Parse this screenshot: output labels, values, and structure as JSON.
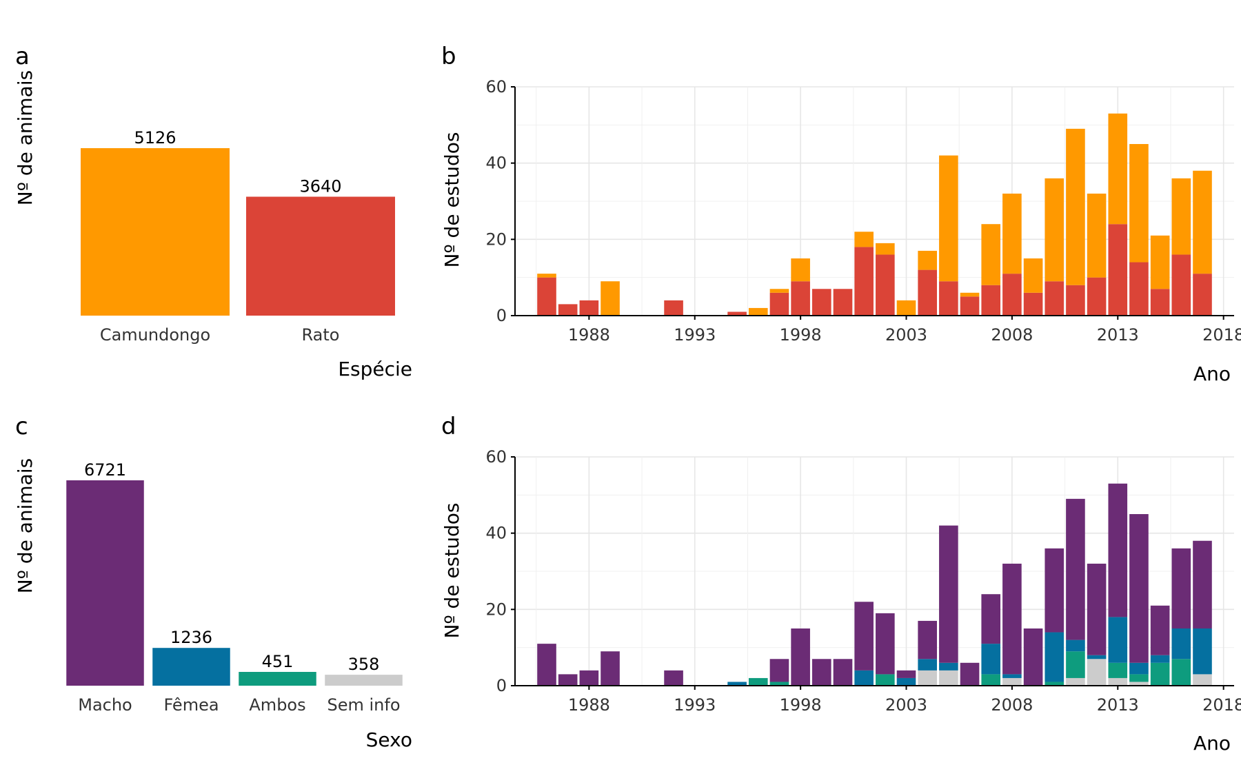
{
  "colors": {
    "camundongo": "#FF9900",
    "rato": "#DB4437",
    "macho": "#6B2C75",
    "femea": "#0570A0",
    "ambos": "#0E9C7E",
    "sem_info": "#CCCCCC"
  },
  "chart_data": [
    {
      "panel": "a",
      "type": "bar",
      "title": "",
      "xlabel": "Espécie",
      "ylabel": "Nº de animais",
      "categories": [
        "Camundongo",
        "Rato"
      ],
      "values": [
        5126,
        3640
      ],
      "value_labels": [
        "5126",
        "3640"
      ],
      "colors": [
        "#FF9900",
        "#DB4437"
      ],
      "ylim": [
        0,
        5126
      ],
      "y_axis_visible": false,
      "grid": false
    },
    {
      "panel": "b",
      "type": "bar",
      "stacked": true,
      "title": "",
      "xlabel": "Ano",
      "ylabel": "Nº de estudos",
      "x": [
        1986,
        1987,
        1988,
        1989,
        1992,
        1995,
        1996,
        1997,
        1998,
        1999,
        2000,
        2001,
        2002,
        2003,
        2004,
        2005,
        2006,
        2007,
        2008,
        2009,
        2010,
        2011,
        2012,
        2013,
        2014,
        2015,
        2016,
        2017
      ],
      "series": [
        {
          "color": "#DB4437",
          "values": [
            10,
            3,
            4,
            0,
            4,
            1,
            0,
            6,
            9,
            7,
            7,
            18,
            16,
            0,
            12,
            9,
            5,
            8,
            11,
            6,
            9,
            8,
            10,
            24,
            14,
            7,
            16,
            11
          ]
        },
        {
          "color": "#FF9900",
          "values": [
            1,
            0,
            0,
            9,
            0,
            0,
            2,
            1,
            6,
            0,
            0,
            4,
            3,
            4,
            5,
            33,
            1,
            16,
            21,
            9,
            27,
            41,
            22,
            29,
            31,
            14,
            20,
            27
          ]
        }
      ],
      "x_ticks": [
        "1988",
        "1993",
        "1998",
        "2003",
        "2008",
        "2013",
        "2018"
      ],
      "y_ticks": [
        "0",
        "20",
        "40",
        "60"
      ],
      "xlim": [
        1984.5,
        2018.5
      ],
      "ylim": [
        0,
        60
      ],
      "grid": true
    },
    {
      "panel": "c",
      "type": "bar",
      "title": "",
      "xlabel": "Sexo",
      "ylabel": "Nº de animais",
      "categories": [
        "Macho",
        "Fêmea",
        "Ambos",
        "Sem info"
      ],
      "values": [
        6721,
        1236,
        451,
        358
      ],
      "value_labels": [
        "6721",
        "1236",
        "451",
        "358"
      ],
      "colors": [
        "#6B2C75",
        "#0570A0",
        "#0E9C7E",
        "#CCCCCC"
      ],
      "ylim": [
        0,
        6721
      ],
      "y_axis_visible": false,
      "grid": false
    },
    {
      "panel": "d",
      "type": "bar",
      "stacked": true,
      "title": "",
      "xlabel": "Ano",
      "ylabel": "Nº de estudos",
      "x": [
        1986,
        1987,
        1988,
        1989,
        1992,
        1995,
        1996,
        1997,
        1998,
        1999,
        2000,
        2001,
        2002,
        2003,
        2004,
        2005,
        2006,
        2007,
        2008,
        2009,
        2010,
        2011,
        2012,
        2013,
        2014,
        2015,
        2016,
        2017
      ],
      "series": [
        {
          "color": "#CCCCCC",
          "values": [
            0,
            0,
            0,
            0,
            0,
            0,
            0,
            0,
            0,
            0,
            0,
            0,
            0,
            0,
            4,
            4,
            0,
            0,
            2,
            0,
            0,
            2,
            7,
            2,
            1,
            0,
            0,
            3
          ]
        },
        {
          "color": "#0E9C7E",
          "values": [
            0,
            0,
            0,
            0,
            0,
            0,
            2,
            1,
            0,
            0,
            0,
            0,
            3,
            0,
            0,
            0,
            0,
            3,
            0,
            0,
            1,
            7,
            0,
            4,
            2,
            6,
            7,
            0
          ]
        },
        {
          "color": "#0570A0",
          "values": [
            0,
            0,
            0,
            0,
            0,
            1,
            0,
            0,
            0,
            0,
            0,
            4,
            0,
            2,
            3,
            2,
            0,
            8,
            1,
            0,
            13,
            3,
            1,
            12,
            3,
            2,
            8,
            12
          ]
        },
        {
          "color": "#6B2C75",
          "values": [
            11,
            3,
            4,
            9,
            4,
            0,
            0,
            6,
            15,
            7,
            7,
            18,
            16,
            2,
            10,
            36,
            6,
            13,
            29,
            15,
            22,
            37,
            24,
            35,
            39,
            13,
            21,
            23
          ]
        }
      ],
      "x_ticks": [
        "1988",
        "1993",
        "1998",
        "2003",
        "2008",
        "2013",
        "2018"
      ],
      "y_ticks": [
        "0",
        "20",
        "40",
        "60"
      ],
      "xlim": [
        1984.5,
        2018.5
      ],
      "ylim": [
        0,
        60
      ],
      "grid": true
    }
  ]
}
